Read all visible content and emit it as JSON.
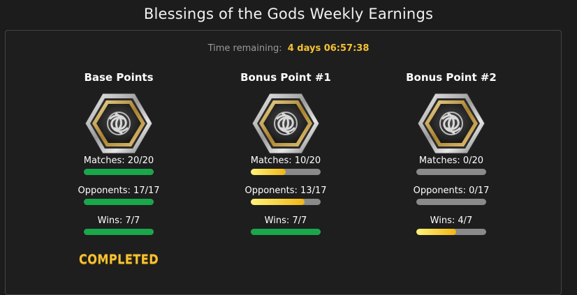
{
  "title": "Blessings of the Gods Weekly Earnings",
  "timer": {
    "label": "Time remaining:",
    "value": "4 days 06:57:38"
  },
  "colors": {
    "green": "#1aa64a",
    "yellow": "#f5c232",
    "track": "#8a8a8a"
  },
  "columns": [
    {
      "heading": "Base Points",
      "badge_icon": "knot-emblem-icon",
      "stats": [
        {
          "text": "Matches:  20/20",
          "progress": 1.0,
          "color": "green"
        },
        {
          "text": "Opponents:  17/17",
          "progress": 1.0,
          "color": "green"
        },
        {
          "text": "Wins:  7/7",
          "progress": 1.0,
          "color": "green"
        }
      ],
      "status": "COMPLETED"
    },
    {
      "heading": "Bonus Point #1",
      "badge_icon": "knot-emblem-icon",
      "stats": [
        {
          "text": "Matches:  10/20",
          "progress": 0.5,
          "color": "yellow"
        },
        {
          "text": "Opponents:  13/17",
          "progress": 0.765,
          "color": "yellow"
        },
        {
          "text": "Wins:  7/7",
          "progress": 1.0,
          "color": "green"
        }
      ],
      "status": ""
    },
    {
      "heading": "Bonus Point #2",
      "badge_icon": "knot-emblem-icon",
      "stats": [
        {
          "text": "Matches:  0/20",
          "progress": 0.0,
          "color": "yellow"
        },
        {
          "text": "Opponents:  0/17",
          "progress": 0.0,
          "color": "yellow"
        },
        {
          "text": "Wins:  4/7",
          "progress": 0.571,
          "color": "yellow"
        }
      ],
      "status": ""
    }
  ]
}
